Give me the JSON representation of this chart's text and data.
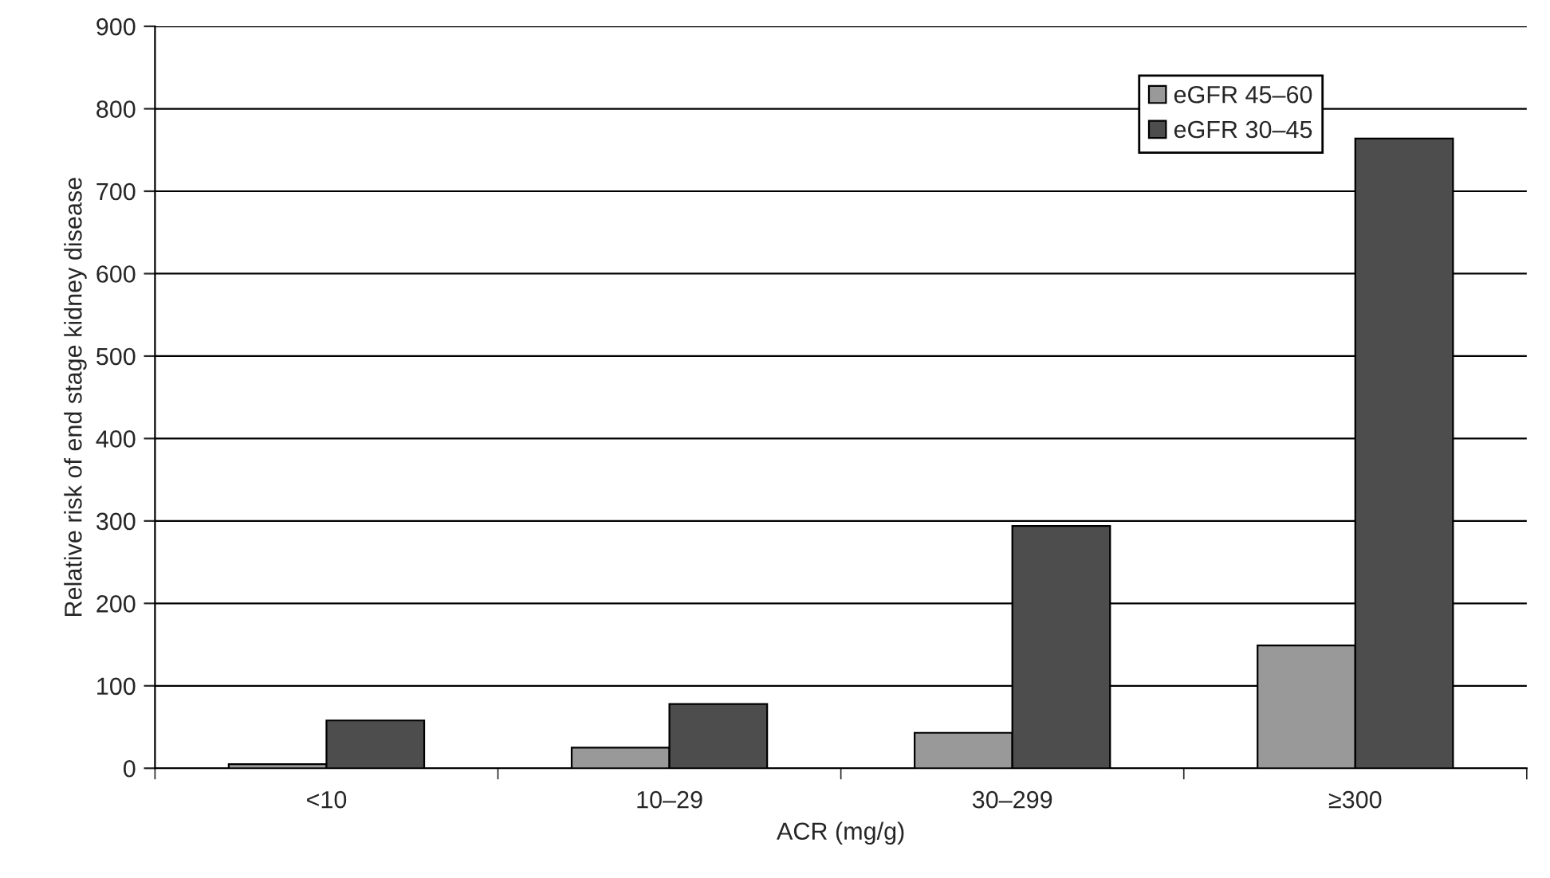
{
  "chart_data": {
    "type": "bar",
    "xlabel": "ACR (mg/g)",
    "ylabel": "Relative risk of end stage kidney disease",
    "categories": [
      "<10",
      "10–29",
      "30–299",
      "≥300"
    ],
    "series": [
      {
        "name": "eGFR 45–60",
        "color": "#999999",
        "values": [
          5,
          25,
          43,
          149
        ]
      },
      {
        "name": "eGFR 30–45",
        "color": "#4d4d4d",
        "values": [
          58,
          78,
          294,
          764
        ]
      }
    ],
    "ylim": [
      0,
      900
    ],
    "yticks": [
      0,
      100,
      200,
      300,
      400,
      500,
      600,
      700,
      800,
      900
    ],
    "grid": "y",
    "legend": "top right"
  }
}
